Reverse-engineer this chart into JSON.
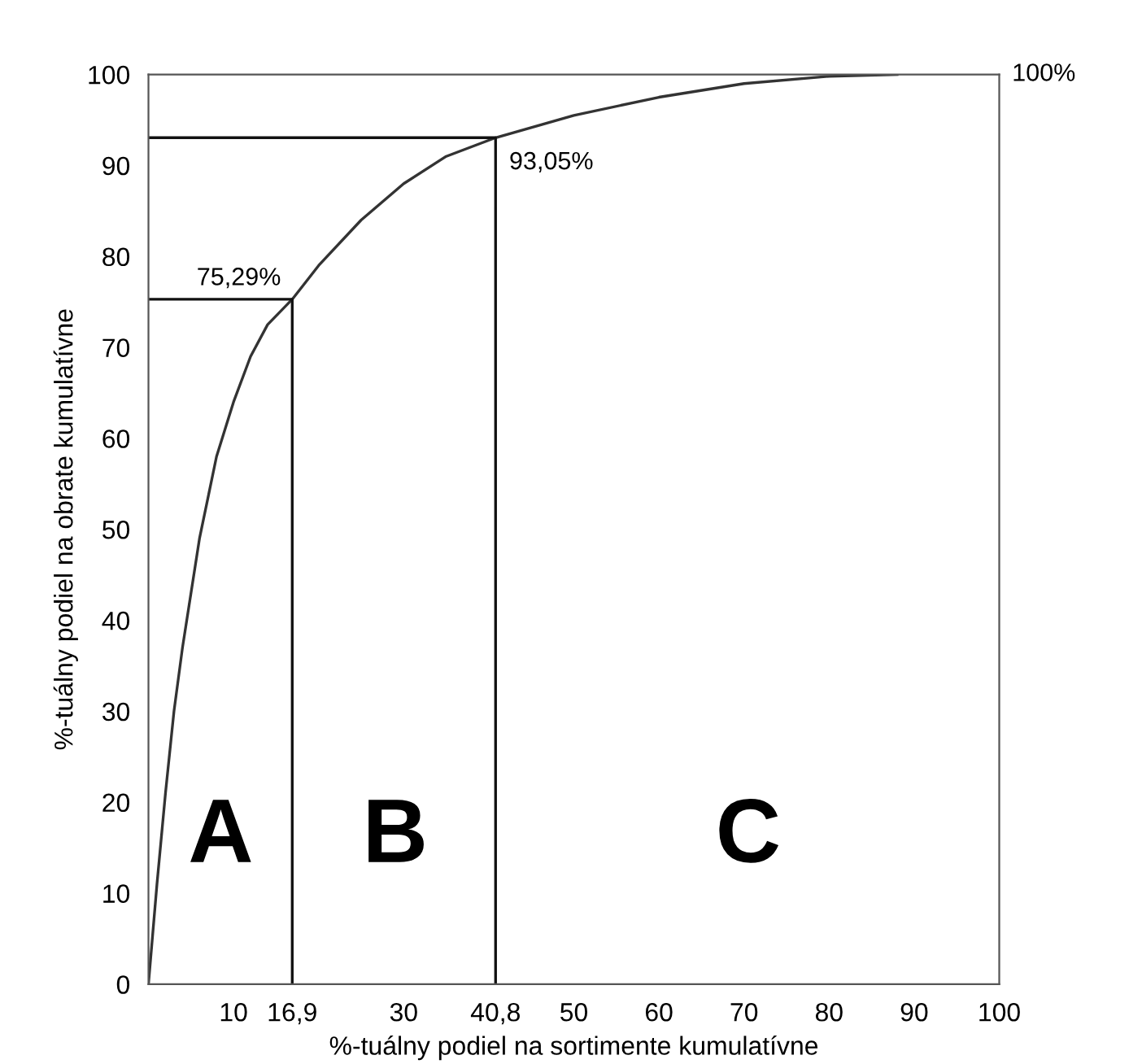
{
  "chart_data": {
    "type": "line",
    "xlabel": "%-tuálny podiel na sortimente kumulatívne",
    "ylabel": "%-tuálny podiel na obrate kumulatívne",
    "xlim": [
      0,
      100
    ],
    "ylim": [
      0,
      100
    ],
    "xticks": [
      10,
      {
        "value": 16.9,
        "label": "16,9"
      },
      {
        "value": 30,
        "label": "30"
      },
      {
        "value": 40.8,
        "label": "40,8"
      },
      50,
      60,
      70,
      80,
      90,
      100
    ],
    "yticks": [
      0,
      10,
      20,
      30,
      40,
      50,
      60,
      70,
      80,
      90,
      100
    ],
    "series": [
      {
        "color": "#333333",
        "x": [
          0,
          1,
          2,
          3,
          4,
          6,
          8,
          10,
          12,
          14,
          16.9,
          20,
          25,
          30,
          35,
          40.8,
          50,
          60,
          70,
          80,
          88
        ],
        "values": [
          0,
          11,
          21,
          30,
          37,
          49,
          58,
          64,
          69,
          72.5,
          75.29,
          79,
          84,
          88,
          91,
          93.05,
          95.5,
          97.5,
          99,
          99.8,
          100
        ]
      },
      {
        "color": "#111111",
        "x": [
          0,
          16.9,
          16.9
        ],
        "values": [
          75.29,
          75.29,
          0
        ]
      },
      {
        "color": "#111111",
        "x": [
          0,
          40.8,
          40.8
        ],
        "values": [
          93.05,
          93.05,
          0
        ]
      }
    ],
    "annotations": [
      {
        "text": "75,29%",
        "x": 16.9,
        "y": 75.29
      },
      {
        "text": "93,05%",
        "x": 40.8,
        "y": 93.05
      },
      "100%",
      "A",
      "B",
      "C"
    ],
    "marker": "none",
    "line_style": "solid",
    "grid": false
  }
}
